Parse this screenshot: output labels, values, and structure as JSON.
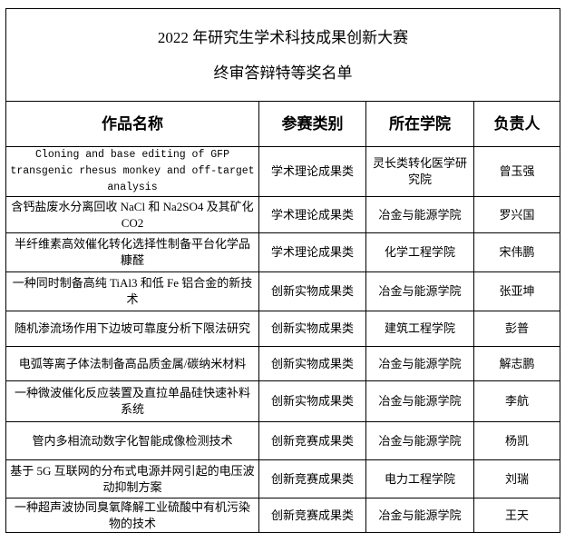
{
  "title": {
    "line1": "2022 年研究生学术科技成果创新大赛",
    "line2": "终审答辩特等奖名单"
  },
  "columns": [
    "作品名称",
    "参赛类别",
    "所在学院",
    "负责人"
  ],
  "rows": [
    {
      "work": "Cloning and base editing of GFP transgenic rhesus monkey and off-target analysis",
      "category": "学术理论成果类",
      "college": "灵长类转化医学研究院",
      "leader": "曾玉强"
    },
    {
      "work": "含钙盐废水分离回收 NaCl 和 Na2SO4 及其矿化 CO2",
      "category": "学术理论成果类",
      "college": "冶金与能源学院",
      "leader": "罗兴国"
    },
    {
      "work": "半纤维素高效催化转化选择性制备平台化学品糠醛",
      "category": "学术理论成果类",
      "college": "化学工程学院",
      "leader": "宋伟鹏"
    },
    {
      "work": "一种同时制备高纯 TiAl3 和低 Fe 铝合金的新技术",
      "category": "创新实物成果类",
      "college": "冶金与能源学院",
      "leader": "张亚坤"
    },
    {
      "work": "随机渗流场作用下边坡可靠度分析下限法研究",
      "category": "创新实物成果类",
      "college": "建筑工程学院",
      "leader": "彭普"
    },
    {
      "work": "电弧等离子体法制备高品质金属/碳纳米材料",
      "category": "创新实物成果类",
      "college": "冶金与能源学院",
      "leader": "解志鹏"
    },
    {
      "work": "一种微波催化反应装置及直拉单晶硅快速补料系统",
      "category": "创新实物成果类",
      "college": "冶金与能源学院",
      "leader": "李航"
    },
    {
      "work": "管内多相流动数字化智能成像检测技术",
      "category": "创新竞赛成果类",
      "college": "冶金与能源学院",
      "leader": "杨凯"
    },
    {
      "work": "基于 5G 互联网的分布式电源并网引起的电压波动抑制方案",
      "category": "创新竞赛成果类",
      "college": "电力工程学院",
      "leader": "刘瑞"
    },
    {
      "work": "一种超声波协同臭氧降解工业硫酸中有机污染物的技术",
      "category": "创新竞赛成果类",
      "college": "冶金与能源学院",
      "leader": "王天"
    }
  ]
}
